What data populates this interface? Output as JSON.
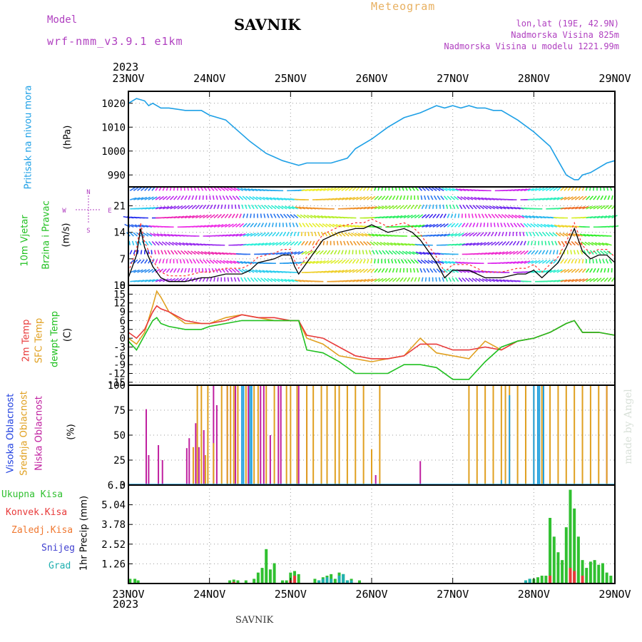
{
  "header": {
    "model_label": "Model",
    "model_name": "wrf-nmm_v3.9.1 e1km",
    "station": "SAVNIK",
    "product": "Meteogram",
    "lonlat": "lon,lat (19E, 42.9N)",
    "elevation": "Nadmorska Visina 825m",
    "model_elevation": "Nadmorska Visina u modelu 1221.99m",
    "year_top": "2023",
    "year_bottom": "2023",
    "footer_station": "SAVNIK",
    "credit": "made by Angel"
  },
  "colors": {
    "pressure": "#1ea0e6",
    "temp2m": "#e83a3a",
    "sfc": "#e0a020",
    "dewpt": "#20c020",
    "wind_black": "#000000",
    "wind_red": "#ff3030",
    "visoka": "#20a0e0",
    "srednja": "#e0a020",
    "niska": "#c020a0",
    "ukupna": "#30c030",
    "konvek": "#e83a3a",
    "zaledj": "#f07830",
    "snijeg": "#4040d0",
    "grad": "#20b0b0",
    "header_purple": "#b040c0",
    "header_orange": "#e8b060"
  },
  "panels": {
    "pressure": {
      "label1": "Pritisak na nivou mora",
      "unit": "(hPa)"
    },
    "wind": {
      "label1": "10m Vjetar",
      "label2": "Brzina i Pravac",
      "unit": "(m/s)",
      "compass": [
        "N",
        "E",
        "S",
        "W"
      ]
    },
    "temp": {
      "label1": "2m Temp",
      "label2": "SFC Temp",
      "label3": "dewpt Temp",
      "unit": "(C)"
    },
    "cloud": {
      "label1": "Visoka Oblacnost",
      "label2": "Srednja Oblacnost",
      "label3": "Niska Oblacnost",
      "unit": "(%)"
    },
    "precip": {
      "legend": [
        "Ukupna Kisa",
        "Konvek.Kisa",
        "Zaledj.Kisa",
        "Snijeg",
        "Grad"
      ],
      "unit": "1hr Precip (mm)"
    }
  },
  "chart_data": [
    {
      "type": "line",
      "title": "Pritisak na nivou mora",
      "ylabel": "(hPa)",
      "x_categories": [
        "23NOV",
        "24NOV",
        "25NOV",
        "26NOV",
        "27NOV",
        "28NOV",
        "29NOV"
      ],
      "x_unit": "days from 23NOV 00z",
      "yticks": [
        990,
        1000,
        1010,
        1020
      ],
      "ylim": [
        985,
        1025
      ],
      "series": [
        {
          "name": "Pritisak na nivou mora",
          "x": [
            0,
            0.1,
            0.2,
            0.25,
            0.3,
            0.35,
            0.4,
            0.5,
            0.7,
            0.9,
            1.0,
            1.2,
            1.3,
            1.5,
            1.7,
            1.9,
            2.0,
            2.1,
            2.2,
            2.4,
            2.5,
            2.7,
            2.8,
            2.9,
            3.0,
            3.2,
            3.4,
            3.6,
            3.8,
            3.9,
            4.0,
            4.1,
            4.2,
            4.3,
            4.4,
            4.5,
            4.6,
            4.8,
            5.0,
            5.2,
            5.3,
            5.4,
            5.5,
            5.55,
            5.6,
            5.7,
            5.8,
            5.9,
            6.0
          ],
          "values": [
            1020,
            1022,
            1021,
            1019,
            1020,
            1019,
            1018,
            1018,
            1017,
            1017,
            1015,
            1013,
            1010,
            1004,
            999,
            996,
            995,
            994,
            995,
            995,
            995,
            997,
            1001,
            1003,
            1005,
            1010,
            1014,
            1016,
            1019,
            1018,
            1019,
            1018,
            1019,
            1018,
            1018,
            1017,
            1017,
            1013,
            1008,
            1002,
            996,
            990,
            988,
            988,
            990,
            991,
            993,
            995,
            996
          ]
        }
      ]
    },
    {
      "type": "line",
      "title": "10m Vjetar Brzina i Pravac",
      "ylabel": "(m/s)",
      "yticks": [
        0,
        7,
        14,
        21
      ],
      "ylim": [
        0,
        26
      ],
      "series": [
        {
          "name": "10m Vjetar",
          "x": [
            0,
            0.1,
            0.15,
            0.2,
            0.3,
            0.4,
            0.5,
            0.7,
            0.9,
            1.0,
            1.2,
            1.4,
            1.5,
            1.6,
            1.8,
            1.9,
            2.0,
            2.05,
            2.1,
            2.2,
            2.4,
            2.6,
            2.8,
            2.9,
            3.0,
            3.2,
            3.4,
            3.5,
            3.6,
            3.7,
            3.8,
            3.9,
            4.0,
            4.2,
            4.4,
            4.6,
            4.8,
            4.9,
            5.0,
            5.1,
            5.2,
            5.3,
            5.4,
            5.5,
            5.6,
            5.7,
            5.8,
            5.9,
            6.0
          ],
          "values": [
            2,
            8,
            15,
            10,
            5,
            2,
            1,
            1,
            2,
            2,
            3,
            3,
            4,
            6,
            7,
            8,
            8,
            5,
            3,
            6,
            12,
            14,
            15,
            15,
            16,
            14,
            15,
            14,
            12,
            9,
            6,
            2,
            4,
            4,
            2,
            2,
            3,
            3,
            4,
            2,
            4,
            6,
            10,
            15,
            9,
            7,
            8,
            8,
            6
          ]
        }
      ]
    },
    {
      "type": "line",
      "title": "2m Temp / SFC Temp / dewpt Temp",
      "ylabel": "(C)",
      "yticks": [
        -15,
        -12,
        -9,
        -6,
        -3,
        0,
        3,
        6,
        9,
        12,
        15,
        18
      ],
      "ylim": [
        -16,
        18
      ],
      "series": [
        {
          "name": "2m Temp",
          "x": [
            0,
            0.1,
            0.2,
            0.3,
            0.35,
            0.4,
            0.5,
            0.7,
            0.9,
            1.0,
            1.2,
            1.4,
            1.6,
            1.8,
            2.0,
            2.1,
            2.2,
            2.4,
            2.6,
            2.8,
            3.0,
            3.2,
            3.4,
            3.6,
            3.8,
            4.0,
            4.2,
            4.4,
            4.6,
            4.8,
            5.0,
            5.2,
            5.4,
            5.5,
            5.6,
            5.8,
            6.0
          ],
          "values": [
            2,
            0,
            3,
            9,
            11,
            10,
            9,
            6,
            5,
            5,
            6,
            8,
            7,
            7,
            6,
            6,
            1,
            0,
            -3,
            -6,
            -7,
            -7,
            -6,
            -2,
            -2,
            -4,
            -4,
            -3,
            -4,
            -1,
            0,
            2,
            5,
            6,
            2,
            2,
            1
          ]
        },
        {
          "name": "SFC Temp",
          "x": [
            0,
            0.1,
            0.2,
            0.3,
            0.35,
            0.4,
            0.5,
            0.7,
            0.9,
            1.0,
            1.2,
            1.4,
            1.6,
            1.8,
            2.0,
            2.1,
            2.2,
            2.4,
            2.6,
            2.8,
            3.0,
            3.2,
            3.4,
            3.6,
            3.8,
            4.0,
            4.2,
            4.4,
            4.6,
            4.8,
            5.0,
            5.2,
            5.4,
            5.5,
            5.6,
            5.8,
            6.0
          ],
          "values": [
            0,
            -2,
            2,
            11,
            16,
            14,
            9,
            5,
            5,
            5,
            7,
            8,
            7,
            6,
            6,
            6,
            0,
            -2,
            -6,
            -7,
            -8,
            -7,
            -6,
            0,
            -5,
            -6,
            -7,
            -1,
            -4,
            -1,
            0,
            2,
            5,
            6,
            2,
            2,
            1
          ]
        },
        {
          "name": "dewpt Temp",
          "x": [
            0,
            0.1,
            0.2,
            0.3,
            0.35,
            0.4,
            0.5,
            0.7,
            0.9,
            1.0,
            1.2,
            1.4,
            1.6,
            1.8,
            2.0,
            2.1,
            2.2,
            2.4,
            2.6,
            2.8,
            3.0,
            3.2,
            3.4,
            3.6,
            3.8,
            4.0,
            4.2,
            4.4,
            4.6,
            4.8,
            5.0,
            5.2,
            5.4,
            5.5,
            5.6,
            5.8,
            6.0
          ],
          "values": [
            -1,
            -4,
            1,
            6,
            7,
            5,
            4,
            3,
            3,
            4,
            5,
            6,
            6,
            6,
            6,
            6,
            -4,
            -5,
            -8,
            -12,
            -12,
            -12,
            -9,
            -9,
            -10,
            -14,
            -14,
            -8,
            -3,
            -1,
            0,
            2,
            5,
            6,
            2,
            2,
            1
          ]
        }
      ]
    },
    {
      "type": "bar",
      "title": "Oblacnost",
      "ylabel": "(%)",
      "yticks": [
        0,
        25,
        50,
        75,
        100
      ],
      "ylim": [
        0,
        100
      ],
      "series": [
        {
          "name": "Niska Oblacnost",
          "x": [
            0.22,
            0.25,
            0.37,
            0.42,
            0.72,
            0.75,
            0.83,
            0.87,
            0.93,
            1.05,
            1.09,
            1.22,
            1.32,
            1.48,
            1.63,
            1.67,
            1.75,
            1.85,
            1.88,
            2.1,
            2.2,
            3.0,
            3.05,
            3.6,
            5.9
          ],
          "values": [
            76,
            30,
            40,
            25,
            37,
            47,
            62,
            38,
            55,
            100,
            80,
            100,
            100,
            100,
            100,
            100,
            50,
            100,
            100,
            100,
            75,
            10,
            10,
            24,
            100
          ]
        },
        {
          "name": "Srednja Oblacnost",
          "x": [
            0.8,
            0.85,
            0.9,
            0.95,
            0.98,
            1.05,
            1.15,
            1.22,
            1.26,
            1.3,
            1.35,
            1.45,
            1.55,
            1.6,
            1.7,
            1.8,
            1.95,
            2.0,
            2.08,
            2.2,
            2.28,
            2.38,
            2.45,
            2.55,
            2.6,
            2.7,
            2.8,
            2.9,
            3.0,
            3.1,
            4.2,
            4.3,
            4.4,
            4.5,
            4.6,
            4.65,
            4.7,
            4.8,
            4.9,
            5.0,
            5.05,
            5.1,
            5.2,
            5.3,
            5.4,
            5.5,
            5.6,
            5.7,
            5.8,
            5.9,
            6.0
          ],
          "values": [
            38,
            100,
            100,
            30,
            100,
            42,
            100,
            100,
            100,
            100,
            100,
            100,
            100,
            100,
            100,
            100,
            100,
            100,
            100,
            100,
            100,
            100,
            100,
            100,
            100,
            100,
            100,
            100,
            36,
            100,
            100,
            100,
            100,
            100,
            100,
            100,
            100,
            100,
            100,
            100,
            100,
            100,
            100,
            100,
            100,
            100,
            100,
            100,
            100,
            100,
            48
          ]
        },
        {
          "name": "Visoka Oblacnost",
          "x": [
            1.4,
            1.42,
            1.5,
            1.52,
            4.6,
            4.7,
            5.0,
            5.05,
            5.07,
            5.12
          ],
          "values": [
            100,
            100,
            100,
            100,
            5,
            90,
            100,
            100,
            100,
            100
          ]
        }
      ]
    },
    {
      "type": "bar",
      "title": "1hr Precip",
      "ylabel": "1hr Precip (mm)",
      "yticks": [
        1.26,
        2.52,
        3.78,
        5.04,
        6.3
      ],
      "ylim": [
        0,
        6.3
      ],
      "series": [
        {
          "name": "Ukupna Kisa",
          "x": [
            0.02,
            0.08,
            0.12,
            1.25,
            1.3,
            1.35,
            1.45,
            1.55,
            1.6,
            1.65,
            1.7,
            1.75,
            1.8,
            1.9,
            1.95,
            2.0,
            2.05,
            2.1,
            2.3,
            2.35,
            2.4,
            2.45,
            2.5,
            2.55,
            2.6,
            2.65,
            2.7,
            2.75,
            2.85,
            4.9,
            4.95,
            5.0,
            5.05,
            5.1,
            5.15,
            5.2,
            5.25,
            5.3,
            5.35,
            5.4,
            5.45,
            5.5,
            5.55,
            5.6,
            5.65,
            5.7,
            5.75,
            5.8,
            5.85,
            5.9,
            5.95
          ],
          "values": [
            0.3,
            0.3,
            0.2,
            0.2,
            0.25,
            0.2,
            0.2,
            0.3,
            0.7,
            1.0,
            2.2,
            0.9,
            1.3,
            0.2,
            0.2,
            0.7,
            0.8,
            0.6,
            0.3,
            0.2,
            0.4,
            0.5,
            0.6,
            0.3,
            0.7,
            0.6,
            0.2,
            0.3,
            0.2,
            0.2,
            0.3,
            0.3,
            0.4,
            0.5,
            0.5,
            4.2,
            3.0,
            2.0,
            1.5,
            3.6,
            6.0,
            4.8,
            3.0,
            1.5,
            1.0,
            1.4,
            1.5,
            1.2,
            1.3,
            0.7,
            0.5
          ]
        },
        {
          "name": "Konvek.Kisa",
          "x": [
            1.3,
            2.0,
            2.05,
            5.2,
            5.45,
            5.5,
            5.6
          ],
          "values": [
            0.1,
            0.2,
            0.5,
            0.5,
            1.0,
            0.8,
            0.5
          ]
        },
        {
          "name": "Grad",
          "x": [
            2.35,
            2.4,
            2.45,
            2.5,
            2.6,
            2.65,
            2.7,
            2.75,
            4.9,
            4.95
          ],
          "values": [
            0.2,
            0.3,
            0.4,
            0.3,
            0.5,
            0.6,
            0.2,
            0.2,
            0.2,
            0.3
          ]
        }
      ]
    }
  ]
}
